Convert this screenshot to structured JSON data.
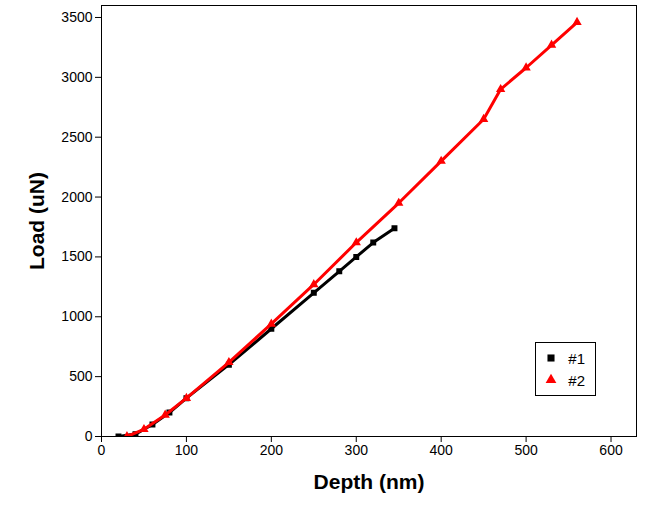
{
  "chart_data": {
    "type": "line",
    "x_label": "Depth (nm)",
    "y_label": "Load (uN)",
    "xlim": [
      0,
      630
    ],
    "ylim": [
      0,
      3600
    ],
    "xticks": [
      0,
      100,
      200,
      300,
      400,
      500,
      600
    ],
    "yticks": [
      0,
      500,
      1000,
      1500,
      2000,
      2500,
      3000,
      3500
    ],
    "legend": "lower right",
    "series": [
      {
        "name": "#1",
        "color": "#000000",
        "marker": "square",
        "x": [
          20,
          40,
          60,
          80,
          100,
          150,
          200,
          250,
          280,
          300,
          320,
          345
        ],
        "values": [
          0,
          20,
          100,
          200,
          320,
          600,
          900,
          1200,
          1380,
          1500,
          1620,
          1740
        ]
      },
      {
        "name": "#2",
        "color": "#ff0000",
        "marker": "triangle",
        "x": [
          30,
          50,
          75,
          100,
          150,
          200,
          250,
          300,
          350,
          400,
          450,
          470,
          500,
          530,
          560
        ],
        "values": [
          0,
          60,
          180,
          320,
          620,
          940,
          1270,
          1620,
          1950,
          2300,
          2650,
          2900,
          3080,
          3270,
          3460
        ]
      }
    ]
  }
}
